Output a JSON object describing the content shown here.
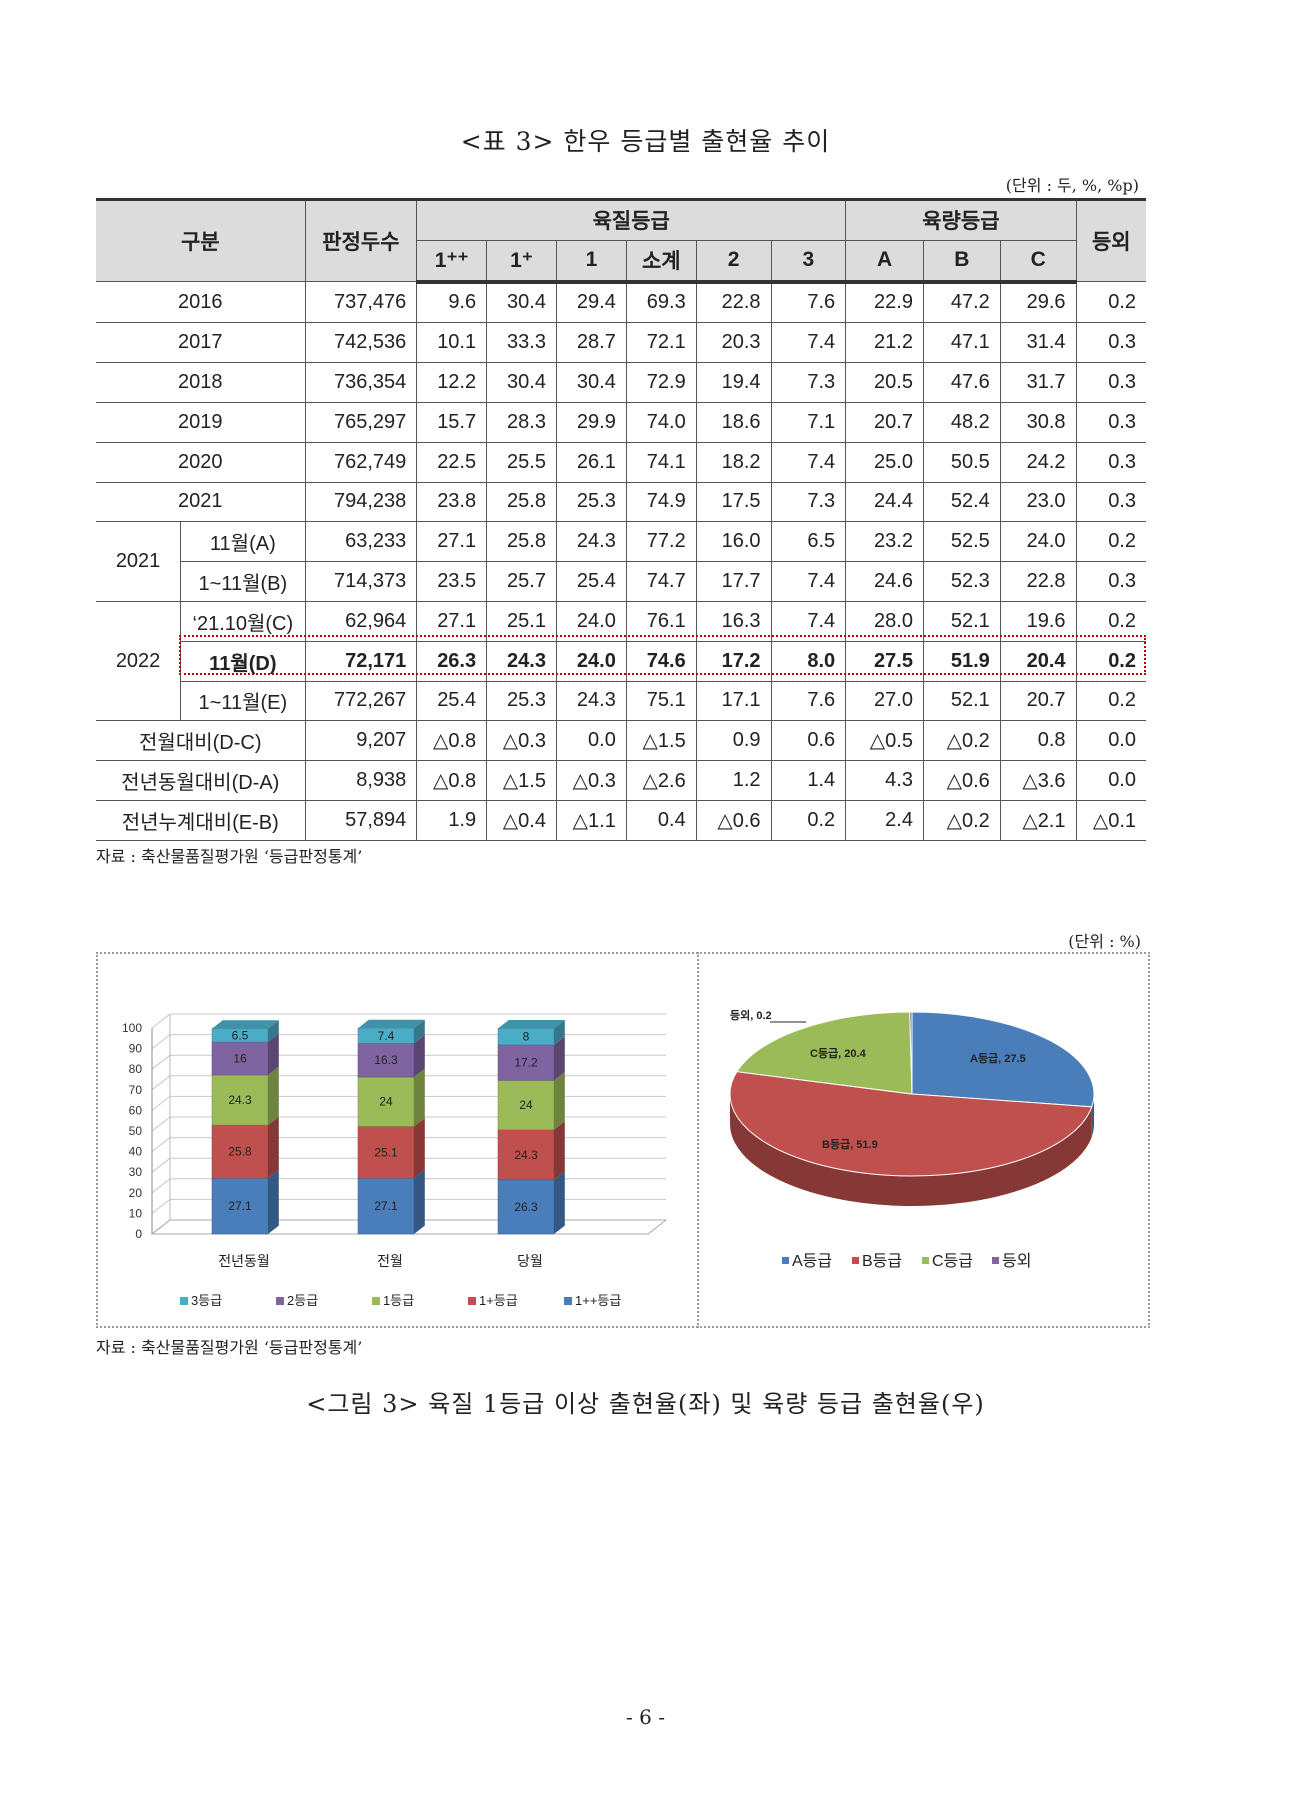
{
  "table": {
    "title": "<표 3> 한우 등급별 출현율 추이",
    "unit": "(단위 : 두, %, %p)",
    "header": {
      "group": "구분",
      "count": "판정두수",
      "quality": "육질등급",
      "yield": "육량등급",
      "other": "등외",
      "subs": [
        "1⁺⁺",
        "1⁺",
        "1",
        "소계",
        "2",
        "3",
        "A",
        "B",
        "C"
      ]
    },
    "rows": [
      {
        "label": "2016",
        "cells": [
          "737,476",
          "9.6",
          "30.4",
          "29.4",
          "69.3",
          "22.8",
          "7.6",
          "22.9",
          "47.2",
          "29.6",
          "0.2"
        ]
      },
      {
        "label": "2017",
        "cells": [
          "742,536",
          "10.1",
          "33.3",
          "28.7",
          "72.1",
          "20.3",
          "7.4",
          "21.2",
          "47.1",
          "31.4",
          "0.3"
        ]
      },
      {
        "label": "2018",
        "cells": [
          "736,354",
          "12.2",
          "30.4",
          "30.4",
          "72.9",
          "19.4",
          "7.3",
          "20.5",
          "47.6",
          "31.7",
          "0.3"
        ]
      },
      {
        "label": "2019",
        "cells": [
          "765,297",
          "15.7",
          "28.3",
          "29.9",
          "74.0",
          "18.6",
          "7.1",
          "20.7",
          "48.2",
          "30.8",
          "0.3"
        ]
      },
      {
        "label": "2020",
        "cells": [
          "762,749",
          "22.5",
          "25.5",
          "26.1",
          "74.1",
          "18.2",
          "7.4",
          "25.0",
          "50.5",
          "24.2",
          "0.3"
        ]
      },
      {
        "label": "2021",
        "cells": [
          "794,238",
          "23.8",
          "25.8",
          "25.3",
          "74.9",
          "17.5",
          "7.3",
          "24.4",
          "52.4",
          "23.0",
          "0.3"
        ]
      },
      {
        "group": "2021",
        "label": "11월(A)",
        "cells": [
          "63,233",
          "27.1",
          "25.8",
          "24.3",
          "77.2",
          "16.0",
          "6.5",
          "23.2",
          "52.5",
          "24.0",
          "0.2"
        ]
      },
      {
        "label": "1~11월(B)",
        "cells": [
          "714,373",
          "23.5",
          "25.7",
          "25.4",
          "74.7",
          "17.7",
          "7.4",
          "24.6",
          "52.3",
          "22.8",
          "0.3"
        ]
      },
      {
        "group": "2022",
        "label": "‘21.10월(C)",
        "cells": [
          "62,964",
          "27.1",
          "25.1",
          "24.0",
          "76.1",
          "16.3",
          "7.4",
          "28.0",
          "52.1",
          "19.6",
          "0.2"
        ]
      },
      {
        "label": "11월(D)",
        "cells": [
          "72,171",
          "26.3",
          "24.3",
          "24.0",
          "74.6",
          "17.2",
          "8.0",
          "27.5",
          "51.9",
          "20.4",
          "0.2"
        ]
      },
      {
        "label": "1~11월(E)",
        "cells": [
          "772,267",
          "25.4",
          "25.3",
          "24.3",
          "75.1",
          "17.1",
          "7.6",
          "27.0",
          "52.1",
          "20.7",
          "0.2"
        ]
      },
      {
        "label": "전월대비(D-C)",
        "cells": [
          "9,207",
          "△0.8",
          "△0.3",
          "0.0",
          "△1.5",
          "0.9",
          "0.6",
          "△0.5",
          "△0.2",
          "0.8",
          "0.0"
        ]
      },
      {
        "label": "전년동월대비(D-A)",
        "cells": [
          "8,938",
          "△0.8",
          "△1.5",
          "△0.3",
          "△2.6",
          "1.2",
          "1.4",
          "4.3",
          "△0.6",
          "△3.6",
          "0.0"
        ]
      },
      {
        "label": "전년누계대비(E-B)",
        "cells": [
          "57,894",
          "1.9",
          "△0.4",
          "△1.1",
          "0.4",
          "△0.6",
          "0.2",
          "2.4",
          "△0.2",
          "△2.1",
          "△0.1"
        ]
      }
    ],
    "source": "자료 : 축산물품질평가원 ‘등급판정통계’"
  },
  "figure": {
    "unit": "(단위 : %)",
    "source": "자료 : 축산물품질평가원 ‘등급판정통계’",
    "caption": "<그림 3> 육질 1등급 이상 출현율(좌) 및 육량 등급 출현율(우)"
  },
  "page_number": "- 6 -",
  "chart_data": [
    {
      "type": "bar",
      "stacked": true,
      "categories": [
        "전년동월",
        "전월",
        "당월"
      ],
      "ylim": [
        0,
        100
      ],
      "yticks": [
        "0",
        "10",
        "20",
        "30",
        "40",
        "50",
        "60",
        "70",
        "80",
        "90",
        "100"
      ],
      "legend_position": "bottom",
      "series": [
        {
          "name": "1++등급",
          "values": [
            27.1,
            27.1,
            26.3
          ],
          "color": "#4a7ebb"
        },
        {
          "name": "1+등급",
          "values": [
            25.8,
            25.1,
            24.3
          ],
          "color": "#c0504d"
        },
        {
          "name": "1등급",
          "values": [
            24.3,
            24,
            24
          ],
          "color": "#9bbb59"
        },
        {
          "name": "2등급",
          "values": [
            16,
            16.3,
            17.2
          ],
          "color": "#8064a2"
        },
        {
          "name": "3등급",
          "values": [
            6.5,
            7.4,
            8
          ],
          "color": "#4bacc6"
        }
      ],
      "legend_order": [
        "3등급",
        "2등급",
        "1등급",
        "1+등급",
        "1++등급"
      ]
    },
    {
      "type": "pie",
      "legend_position": "bottom",
      "slices": [
        {
          "name": "A등급",
          "value": 27.5,
          "label": "A등급, 27.5",
          "color": "#4a7ebb"
        },
        {
          "name": "B등급",
          "value": 51.9,
          "label": "B등급, 51.9",
          "color": "#c0504d"
        },
        {
          "name": "C등급",
          "value": 20.4,
          "label": "C등급, 20.4",
          "color": "#9bbb59"
        },
        {
          "name": "등외",
          "value": 0.2,
          "label": "등외, 0.2",
          "color": "#8064a2"
        }
      ]
    }
  ]
}
